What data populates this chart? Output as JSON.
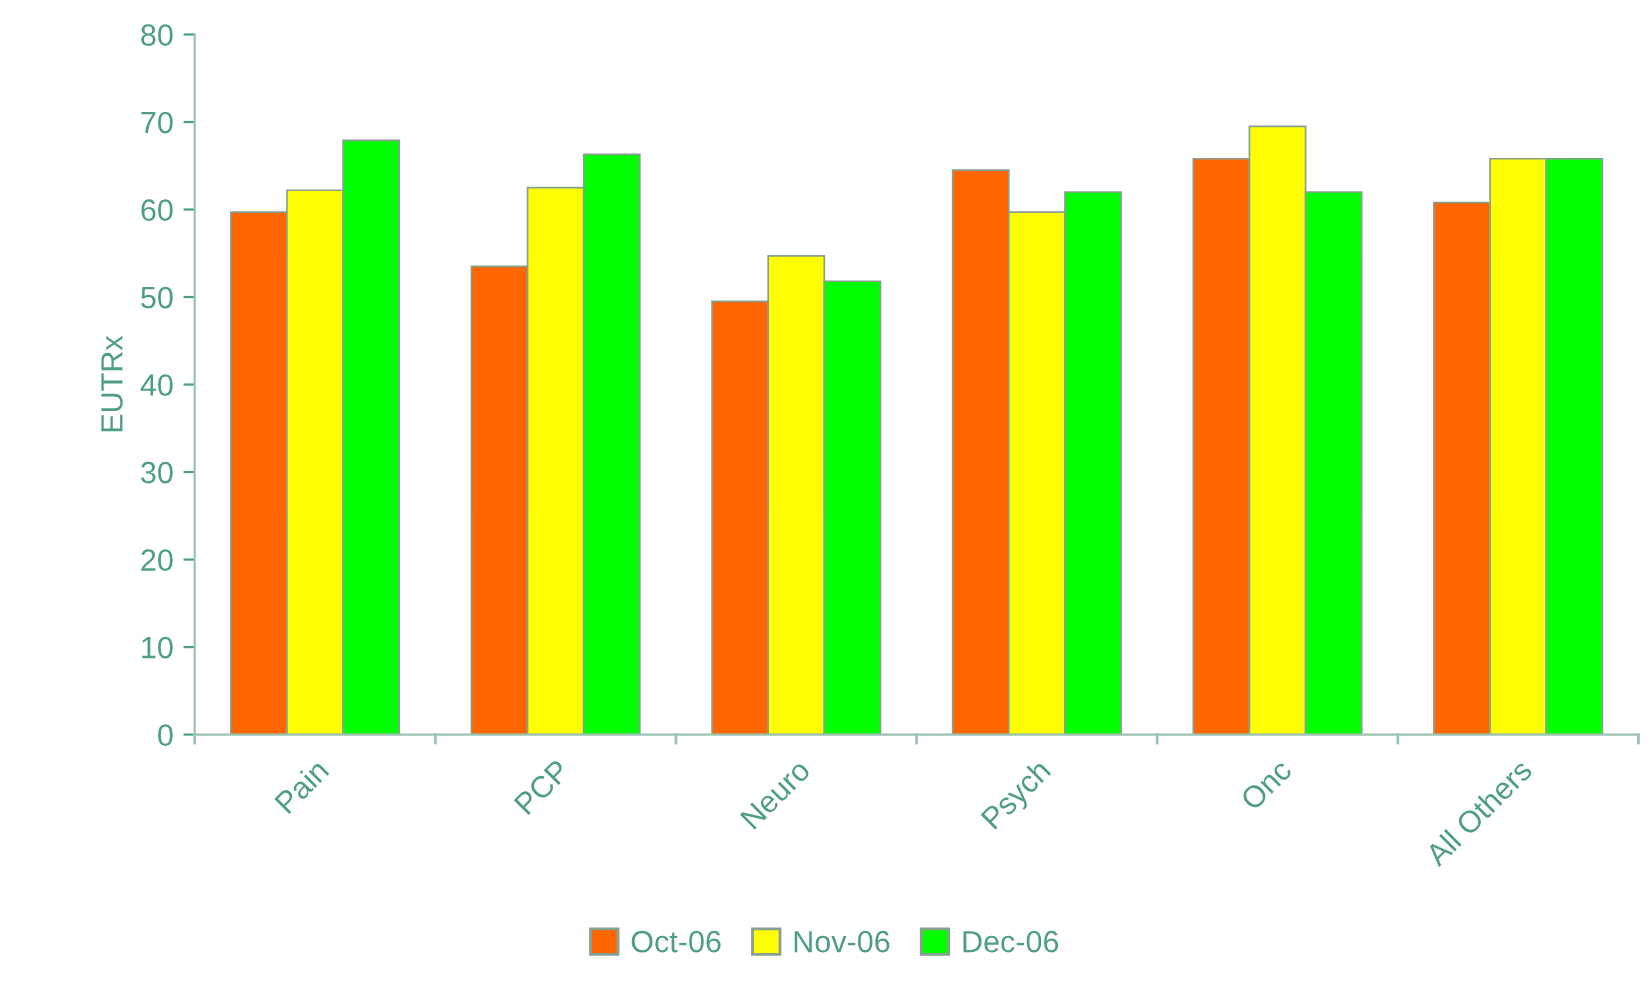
{
  "chart_data": {
    "type": "bar",
    "ylabel": "EUTRx",
    "categories": [
      "Pain",
      "PCP",
      "Neuro",
      "Psych",
      "Onc",
      "All Others"
    ],
    "series": [
      {
        "name": "Oct-06",
        "color": "#ff6600",
        "values": [
          59.7,
          53.5,
          49.5,
          64.5,
          65.8,
          60.8
        ]
      },
      {
        "name": "Nov-06",
        "color": "#ffff00",
        "values": [
          62.2,
          62.5,
          54.7,
          59.7,
          69.5,
          65.8
        ]
      },
      {
        "name": "Dec-06",
        "color": "#00ff00",
        "values": [
          67.9,
          66.3,
          51.8,
          62,
          62,
          65.8
        ]
      }
    ],
    "ylim": [
      0,
      80
    ],
    "yticks": [
      0,
      10,
      20,
      30,
      40,
      50,
      60,
      70,
      80
    ],
    "grid": false,
    "legend": "bottom"
  }
}
